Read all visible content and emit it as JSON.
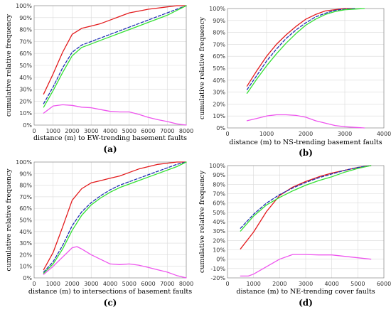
{
  "colors": {
    "red": "#e31a1c",
    "blue": "#1f2fb3",
    "green": "#33e033",
    "magenta": "#ee55ee"
  },
  "chart_data": [
    {
      "type": "line",
      "panel_label": "(a)",
      "xlabel": "distance (m) to EW-trending basement faults",
      "ylabel": "cumulative relative frequency",
      "xlim": [
        0,
        8000
      ],
      "ylim": [
        0,
        100
      ],
      "x_ticks": [
        0,
        1000,
        2000,
        3000,
        4000,
        5000,
        6000,
        7000,
        8000
      ],
      "y_ticks": [
        0,
        10,
        20,
        30,
        40,
        50,
        60,
        70,
        80,
        90,
        100
      ],
      "y_tick_labels": [
        "0%",
        "10%",
        "20%",
        "30%",
        "40%",
        "50%",
        "60%",
        "70%",
        "80%",
        "90%",
        "100%"
      ],
      "grid": true,
      "series": [
        {
          "color": "red",
          "style": "solid",
          "x": [
            500,
            1000,
            1500,
            2000,
            2500,
            3000,
            3500,
            4000,
            4500,
            5000,
            5500,
            6000,
            6500,
            7000,
            7500,
            8000
          ],
          "y": [
            26,
            43,
            61,
            76,
            81,
            83,
            85,
            88,
            91,
            94,
            95.5,
            97,
            98,
            99,
            100,
            100
          ]
        },
        {
          "color": "blue",
          "style": "dashed",
          "x": [
            500,
            1000,
            1500,
            2000,
            2500,
            3000,
            3500,
            4000,
            4500,
            5000,
            5500,
            6000,
            6500,
            7000,
            7500,
            8000
          ],
          "y": [
            18,
            32,
            48,
            61,
            67,
            70,
            73,
            76,
            79,
            82,
            85,
            88,
            91,
            94,
            97,
            100
          ]
        },
        {
          "color": "green",
          "style": "solid",
          "x": [
            500,
            1000,
            1500,
            2000,
            2500,
            3000,
            3500,
            4000,
            4500,
            5000,
            5500,
            6000,
            6500,
            7000,
            7500,
            8000
          ],
          "y": [
            15,
            29,
            44,
            58,
            65,
            68,
            71,
            74,
            77,
            80,
            83,
            86,
            89,
            92,
            96,
            100
          ]
        },
        {
          "color": "magenta",
          "style": "solid",
          "x": [
            500,
            1000,
            1500,
            2000,
            2500,
            3000,
            3500,
            4000,
            4500,
            5000,
            5500,
            6000,
            6500,
            7000,
            7500,
            8000
          ],
          "y": [
            10,
            16,
            17,
            16.5,
            15,
            14.5,
            13,
            11.5,
            11,
            11,
            9,
            6.5,
            4.5,
            3,
            1,
            0
          ]
        }
      ]
    },
    {
      "type": "line",
      "panel_label": "(b)",
      "xlabel": "distance (m) to NS-trending basement faults",
      "ylabel": "cumulative relative frequency",
      "xlim": [
        0,
        4000
      ],
      "ylim": [
        0,
        100
      ],
      "x_ticks": [
        0,
        1000,
        2000,
        3000,
        4000
      ],
      "y_ticks": [
        0,
        10,
        20,
        30,
        40,
        50,
        60,
        70,
        80,
        90,
        100
      ],
      "y_tick_labels": [
        "0%",
        "10%",
        "20%",
        "30%",
        "40%",
        "50%",
        "60%",
        "70%",
        "80%",
        "90%",
        "100%"
      ],
      "grid": true,
      "series": [
        {
          "color": "red",
          "style": "solid",
          "x": [
            500,
            750,
            1000,
            1250,
            1500,
            1750,
            2000,
            2250,
            2500,
            2750,
            3000,
            3250
          ],
          "y": [
            35,
            48,
            60,
            70,
            78,
            85,
            91,
            95,
            98,
            99,
            100,
            100
          ]
        },
        {
          "color": "blue",
          "style": "dashed",
          "x": [
            500,
            750,
            1000,
            1250,
            1500,
            1750,
            2000,
            2250,
            2500,
            2750,
            3000,
            3250
          ],
          "y": [
            32,
            44,
            56,
            66,
            75,
            82,
            88,
            93,
            96,
            98.5,
            99.5,
            100
          ]
        },
        {
          "color": "green",
          "style": "solid",
          "x": [
            500,
            750,
            1000,
            1250,
            1500,
            1750,
            2000,
            2250,
            2500,
            2750,
            3000,
            3250,
            3500
          ],
          "y": [
            29,
            41,
            52,
            62,
            71,
            79,
            86,
            91,
            95,
            97.5,
            99,
            99.5,
            100
          ]
        },
        {
          "color": "magenta",
          "style": "solid",
          "x": [
            500,
            750,
            1000,
            1250,
            1500,
            1750,
            2000,
            2250,
            2500,
            2750,
            3000,
            3250,
            3500
          ],
          "y": [
            6,
            8,
            10,
            11,
            11,
            10.5,
            9,
            6,
            4,
            2,
            1,
            0.5,
            0
          ]
        }
      ]
    },
    {
      "type": "line",
      "panel_label": "(c)",
      "xlabel": "distance (m) to intersections of basement faults",
      "ylabel": "cumulative relative frequency",
      "xlim": [
        0,
        8000
      ],
      "ylim": [
        0,
        100
      ],
      "x_ticks": [
        0,
        1000,
        2000,
        3000,
        4000,
        5000,
        6000,
        7000,
        8000
      ],
      "y_ticks": [
        0,
        10,
        20,
        30,
        40,
        50,
        60,
        70,
        80,
        90,
        100
      ],
      "y_tick_labels": [
        "0%",
        "10%",
        "20%",
        "30%",
        "40%",
        "50%",
        "60%",
        "70%",
        "80%",
        "90%",
        "100%"
      ],
      "grid": true,
      "series": [
        {
          "color": "red",
          "style": "solid",
          "x": [
            500,
            1000,
            1500,
            2000,
            2500,
            3000,
            3500,
            4000,
            4500,
            5000,
            5500,
            6000,
            6500,
            7000,
            7500,
            8000
          ],
          "y": [
            7,
            22,
            44,
            67,
            77,
            82,
            84,
            86,
            88,
            91,
            94,
            96,
            98,
            99,
            100,
            100
          ]
        },
        {
          "color": "blue",
          "style": "dashed",
          "x": [
            500,
            1000,
            1500,
            2000,
            2500,
            3000,
            3500,
            4000,
            4500,
            5000,
            5500,
            6000,
            6500,
            7000,
            7500,
            8000
          ],
          "y": [
            5,
            14,
            28,
            45,
            57,
            65,
            71,
            76,
            80,
            83,
            86,
            89,
            92,
            95,
            98,
            100
          ]
        },
        {
          "color": "green",
          "style": "solid",
          "x": [
            500,
            1000,
            1500,
            2000,
            2500,
            3000,
            3500,
            4000,
            4500,
            5000,
            5500,
            6000,
            6500,
            7000,
            7500,
            8000
          ],
          "y": [
            4,
            12,
            25,
            41,
            54,
            63,
            69,
            74,
            78,
            81,
            84,
            87,
            90,
            93,
            96,
            100
          ]
        },
        {
          "color": "magenta",
          "style": "solid",
          "x": [
            500,
            1000,
            1500,
            2000,
            2250,
            2500,
            3000,
            3500,
            4000,
            4500,
            5000,
            5500,
            6000,
            6500,
            7000,
            7500,
            8000
          ],
          "y": [
            3,
            10,
            18,
            26,
            27,
            25,
            20,
            16,
            12,
            11.5,
            12,
            11,
            9,
            7,
            5,
            2,
            0
          ]
        }
      ]
    },
    {
      "type": "line",
      "panel_label": "(d)",
      "xlabel": "distance (m) to NE-trending cover faults",
      "ylabel": "cumulative relative frequency",
      "xlim": [
        0,
        6000
      ],
      "ylim": [
        -20,
        100
      ],
      "x_ticks": [
        0,
        1000,
        2000,
        3000,
        4000,
        5000,
        6000
      ],
      "y_ticks": [
        -20,
        -10,
        0,
        10,
        20,
        30,
        40,
        50,
        60,
        70,
        80,
        90,
        100
      ],
      "y_tick_labels": [
        "-20%",
        "-10%",
        "0%",
        "10%",
        "20%",
        "30%",
        "40%",
        "50%",
        "60%",
        "70%",
        "80%",
        "90%",
        "100%"
      ],
      "grid": true,
      "series": [
        {
          "color": "red",
          "style": "solid",
          "x": [
            500,
            1000,
            1500,
            2000,
            2500,
            3000,
            3500,
            4000,
            4500,
            5000,
            5500
          ],
          "y": [
            11,
            29,
            51,
            68,
            77,
            83,
            88,
            92,
            95,
            98,
            100
          ]
        },
        {
          "color": "blue",
          "style": "dashed",
          "x": [
            500,
            1000,
            1500,
            2000,
            2500,
            3000,
            3500,
            4000,
            4500,
            5000,
            5500
          ],
          "y": [
            33,
            48,
            60,
            69,
            76,
            82,
            87,
            91,
            95,
            98,
            100
          ]
        },
        {
          "color": "green",
          "style": "solid",
          "x": [
            500,
            1000,
            1500,
            2000,
            2500,
            3000,
            3500,
            4000,
            4500,
            5000,
            5500
          ],
          "y": [
            30,
            46,
            58,
            66,
            73,
            79,
            84,
            88,
            93,
            97,
            100
          ]
        },
        {
          "color": "magenta",
          "style": "solid",
          "x": [
            500,
            800,
            1000,
            1500,
            2000,
            2500,
            3000,
            3500,
            4000,
            4500,
            5000,
            5500
          ],
          "y": [
            -18,
            -18,
            -16,
            -8,
            0,
            5,
            5,
            4.5,
            4.5,
            3,
            1.5,
            0
          ]
        }
      ]
    }
  ]
}
